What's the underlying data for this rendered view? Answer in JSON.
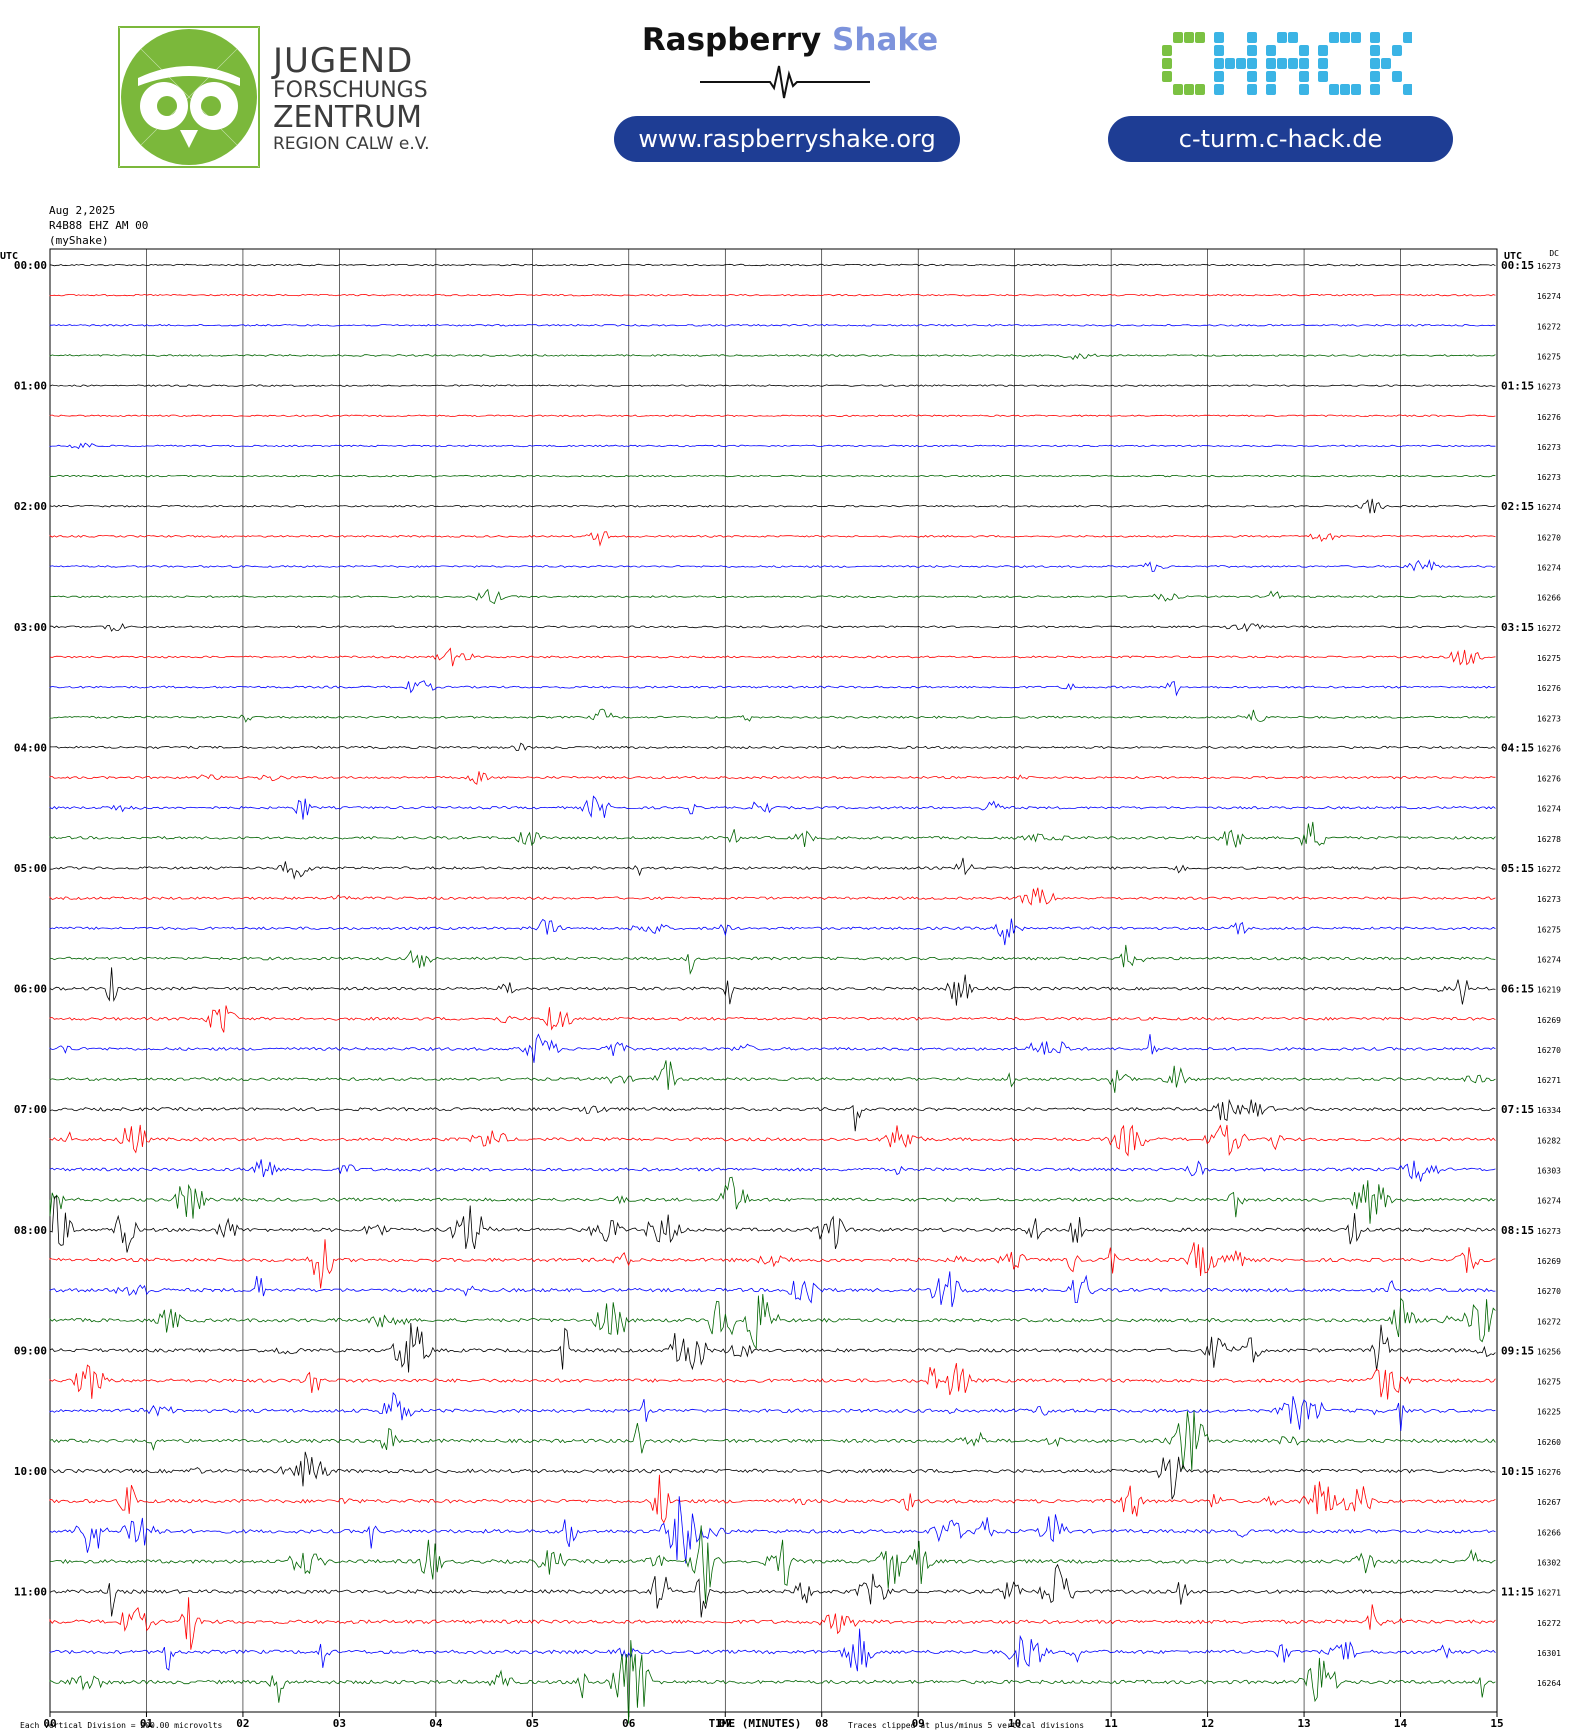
{
  "header": {
    "jfz_logo": {
      "line1": "JUGEND",
      "line2": "FORSCHUNGS",
      "line3": "ZENTRUM",
      "line4": "REGION CALW e.V.",
      "icon": "owl-logo-icon",
      "color": "#7bb83b"
    },
    "raspberry_shake": {
      "title_part1": "Raspberry",
      "title_part2": "Shake",
      "url": "www.raspberryshake.org",
      "icon": "seismic-wave-icon",
      "accent_color": "#7d93dc",
      "pill_color": "#1e3d94"
    },
    "chack": {
      "logo_text": "CHACK",
      "url": "c-turm.c-hack.de",
      "colors": [
        "#7bc142",
        "#3bb4e5"
      ]
    }
  },
  "station": {
    "date": "Aug 2,2025",
    "channel": "R4B88 EHZ AM 00",
    "source": "(myShake)"
  },
  "chart_data": {
    "type": "helicorder",
    "left_axis_label": "UTC",
    "right_axis_label": "UTC",
    "dc_label": "DC",
    "xlabel": "TIME (MINUTES)",
    "x_ticks": [
      "00",
      "01",
      "02",
      "03",
      "04",
      "05",
      "06",
      "07",
      "08",
      "09",
      "10",
      "11",
      "12",
      "13",
      "14",
      "15"
    ],
    "xlim": [
      0,
      15
    ],
    "left_hour_labels": [
      "00:00",
      "01:00",
      "02:00",
      "03:00",
      "04:00",
      "05:00",
      "06:00",
      "07:00",
      "08:00",
      "09:00",
      "10:00",
      "11:00"
    ],
    "right_hour_labels": [
      "00:15",
      "01:15",
      "02:15",
      "03:15",
      "04:15",
      "05:15",
      "06:15",
      "07:15",
      "08:15",
      "09:15",
      "10:15",
      "11:15"
    ],
    "line_colors": [
      "#000000",
      "#ff0000",
      "#0000ff",
      "#006400"
    ],
    "dc_offsets": [
      "16273",
      "16274",
      "16272",
      "16275",
      "16273",
      "16276",
      "16273",
      "16273",
      "16274",
      "16270",
      "16274",
      "16266",
      "16272",
      "16275",
      "16276",
      "16273",
      "16276",
      "16276",
      "16274",
      "16278",
      "16272",
      "16273",
      "16275",
      "16274",
      "16219",
      "16269",
      "16270",
      "16271",
      "16334",
      "16282",
      "16303",
      "16274",
      "16273",
      "16269",
      "16270",
      "16272",
      "16256",
      "16275",
      "16225",
      "16260",
      "16276",
      "16267",
      "16266",
      "16302",
      "16271",
      "16272",
      "16301",
      "16264"
    ],
    "activity_level": [
      0.15,
      0.15,
      0.2,
      0.2,
      0.15,
      0.15,
      0.15,
      0.15,
      0.2,
      0.25,
      0.25,
      0.25,
      0.25,
      0.3,
      0.35,
      0.35,
      0.45,
      0.45,
      0.5,
      0.6,
      0.55,
      0.55,
      0.6,
      0.65,
      0.7,
      0.7,
      0.7,
      0.7,
      0.8,
      0.8,
      0.8,
      0.85,
      0.95,
      0.95,
      0.95,
      0.95,
      0.95,
      0.95,
      0.95,
      0.95,
      1.0,
      1.0,
      1.0,
      1.0,
      1.0,
      1.0,
      1.0,
      1.0
    ],
    "footer_left": "Each Vertical Division =  200.00 microvolts",
    "footer_right": "Traces clipped at plus/minus 5 vertical divisions"
  }
}
